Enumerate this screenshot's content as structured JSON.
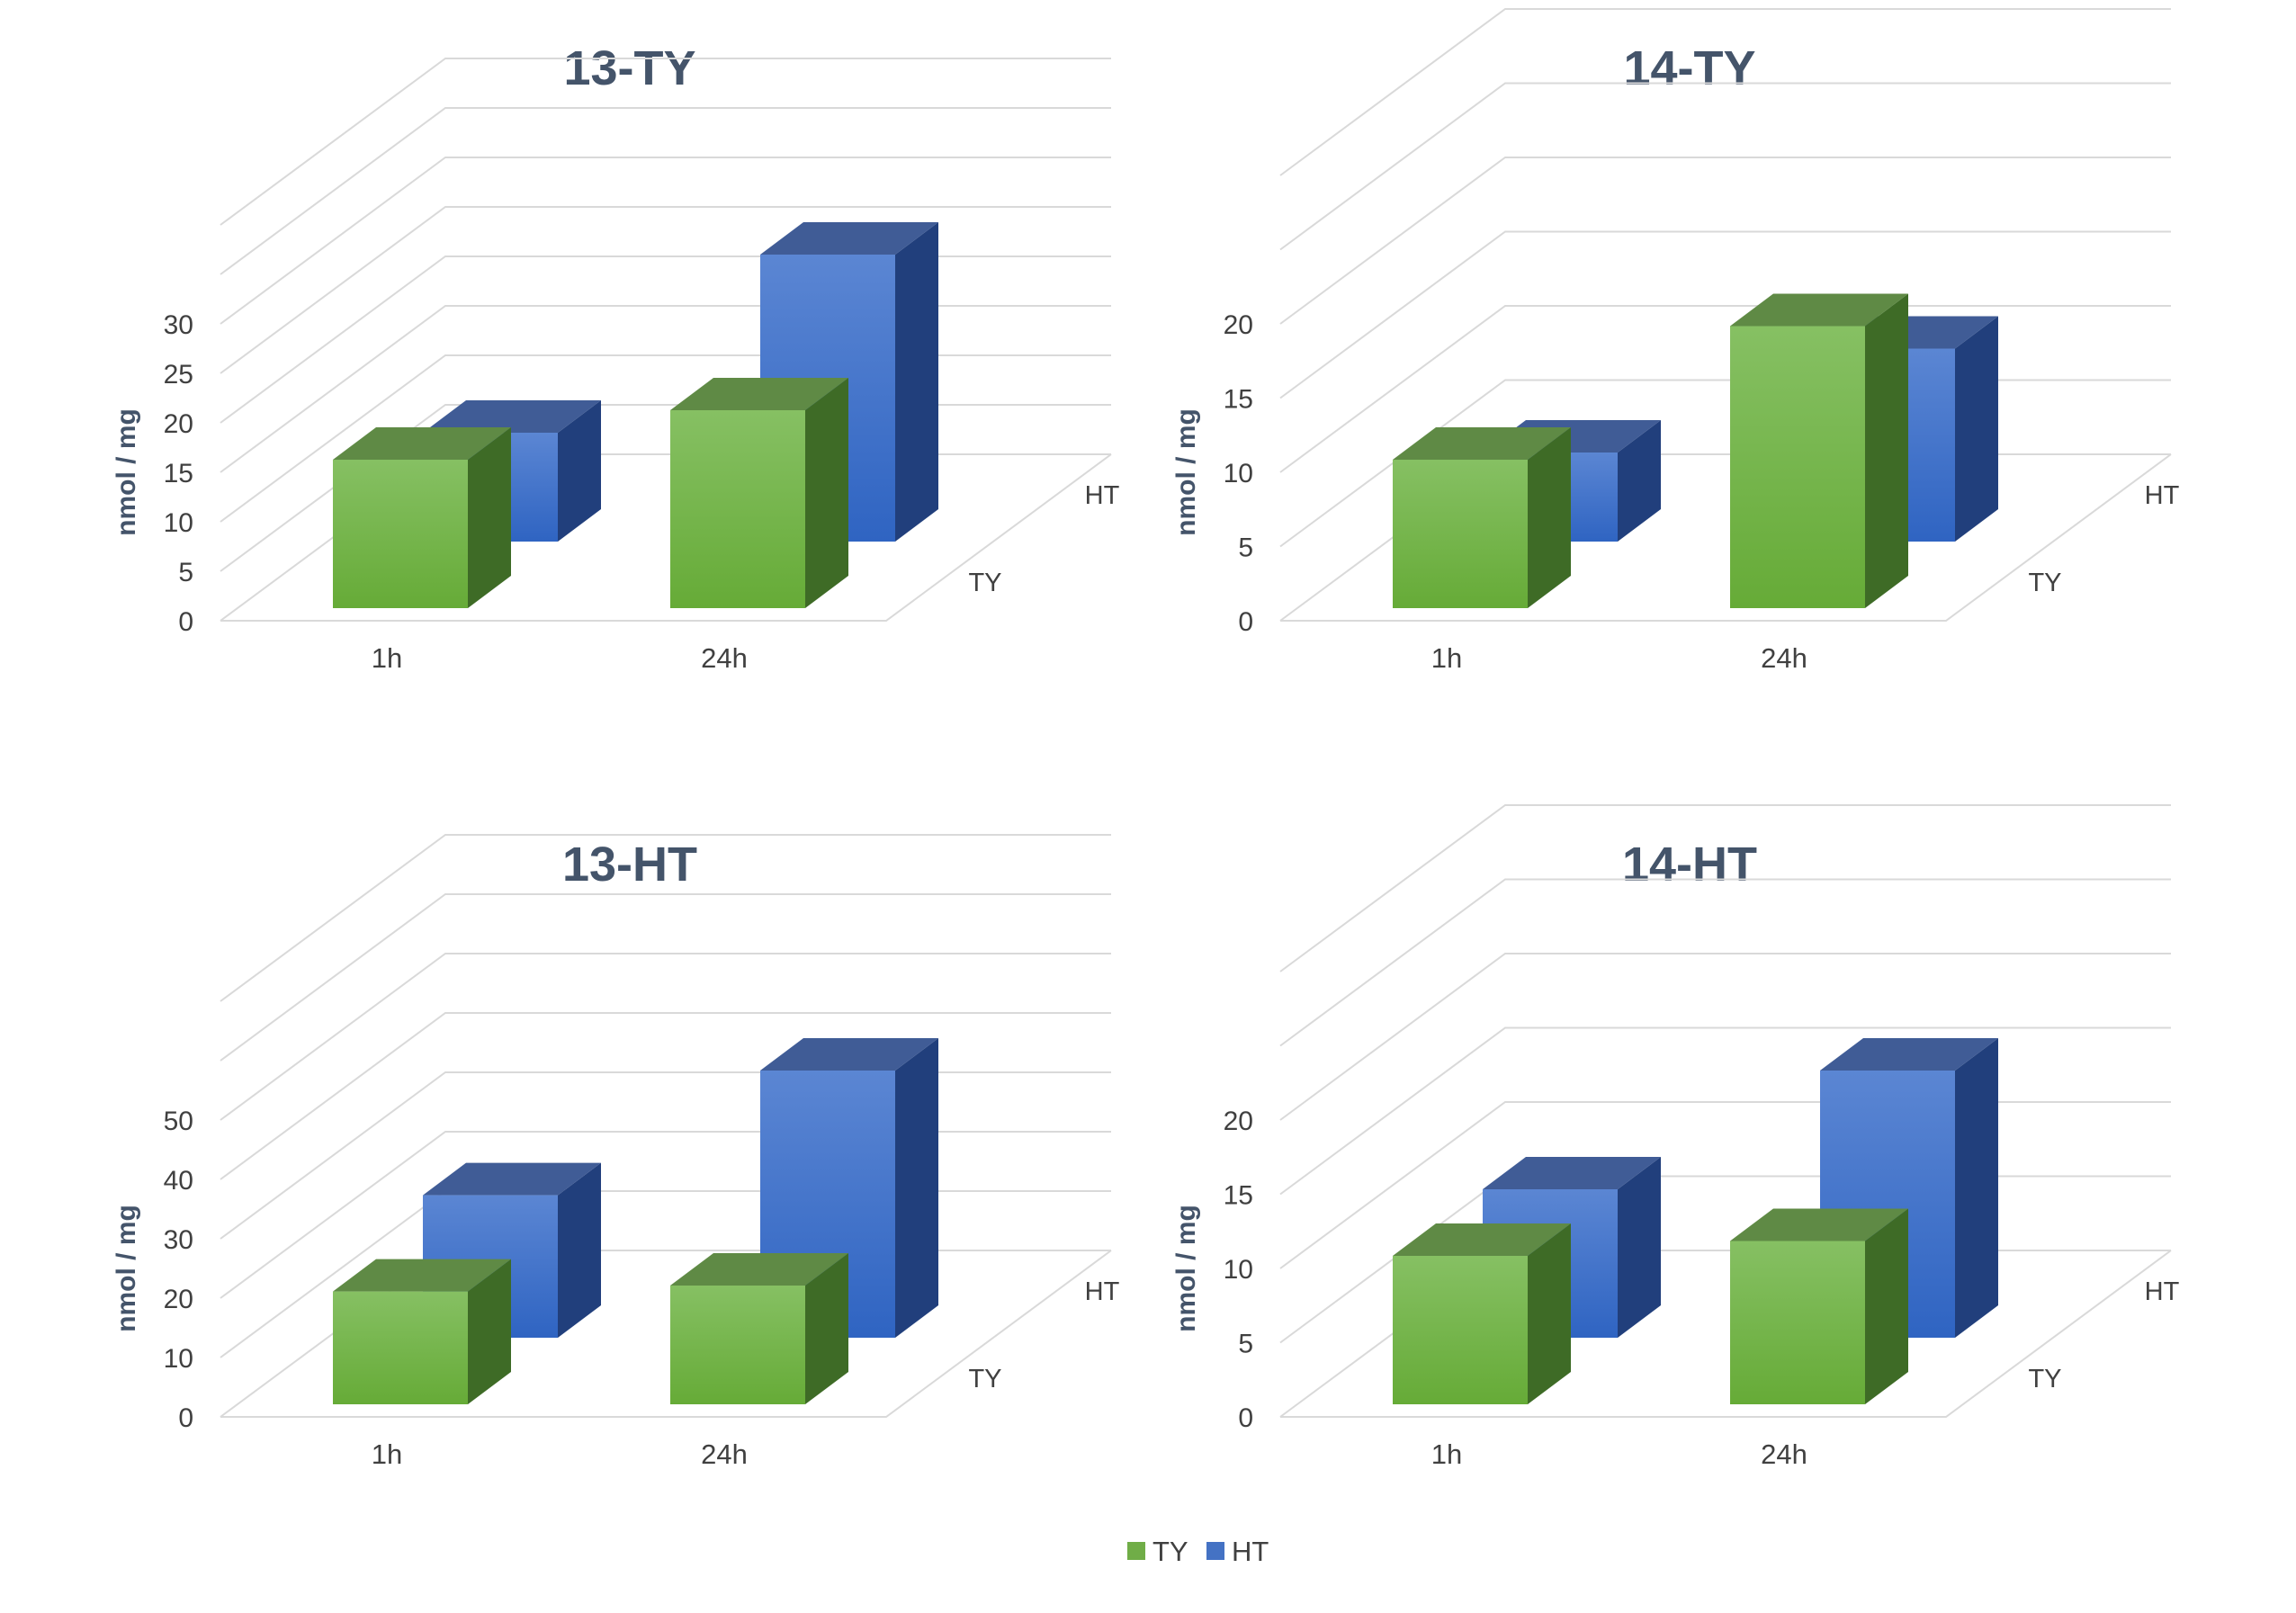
{
  "chart_data": [
    {
      "type": "bar3d",
      "title": "13-TY",
      "ylabel": "nmol / mg",
      "ylim": [
        0,
        30
      ],
      "yticks": [
        "0",
        "5",
        "10",
        "15",
        "20",
        "25",
        "30"
      ],
      "categories": [
        "1h",
        "24h"
      ],
      "depth_labels": [
        "TY",
        "HT"
      ],
      "series": [
        {
          "name": "TY",
          "values": [
            15,
            20
          ]
        },
        {
          "name": "HT",
          "values": [
            11,
            29
          ]
        }
      ]
    },
    {
      "type": "bar3d",
      "title": "14-TY",
      "ylabel": "nmol / mg",
      "ylim": [
        0,
        20
      ],
      "yticks": [
        "0",
        "5",
        "10",
        "15",
        "20"
      ],
      "categories": [
        "1h",
        "24h"
      ],
      "depth_labels": [
        "TY",
        "HT"
      ],
      "series": [
        {
          "name": "TY",
          "values": [
            10,
            19
          ]
        },
        {
          "name": "HT",
          "values": [
            6,
            13
          ]
        }
      ]
    },
    {
      "type": "bar3d",
      "title": "13-HT",
      "ylabel": "nmol / mg",
      "ylim": [
        0,
        50
      ],
      "yticks": [
        "0",
        "10",
        "20",
        "30",
        "40",
        "50"
      ],
      "categories": [
        "1h",
        "24h"
      ],
      "depth_labels": [
        "TY",
        "HT"
      ],
      "series": [
        {
          "name": "TY",
          "values": [
            19,
            20
          ]
        },
        {
          "name": "HT",
          "values": [
            24,
            45
          ]
        }
      ]
    },
    {
      "type": "bar3d",
      "title": "14-HT",
      "ylabel": "nmol / mg",
      "ylim": [
        0,
        20
      ],
      "yticks": [
        "0",
        "5",
        "10",
        "15",
        "20"
      ],
      "categories": [
        "1h",
        "24h"
      ],
      "depth_labels": [
        "TY",
        "HT"
      ],
      "series": [
        {
          "name": "TY",
          "values": [
            10,
            11
          ]
        },
        {
          "name": "HT",
          "values": [
            10,
            18
          ]
        }
      ]
    }
  ],
  "legend": {
    "position": "bottom",
    "items": [
      {
        "label": "TY",
        "color": "#70ad47"
      },
      {
        "label": "HT",
        "color": "#4472c4"
      }
    ]
  },
  "colors": {
    "TY": {
      "front_top": "#86c063",
      "front_bottom": "#66ab37",
      "side": "#3e6b26",
      "top": "#5f8a45"
    },
    "HT": {
      "front_top": "#5b86d3",
      "front_bottom": "#2f64c2",
      "side": "#213f7c",
      "top": "#405c96"
    }
  }
}
